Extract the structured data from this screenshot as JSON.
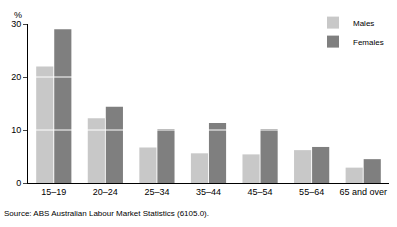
{
  "chart_data": {
    "type": "bar",
    "ylabel": "%",
    "categories": [
      "15–19",
      "20–24",
      "25–34",
      "35–44",
      "45–54",
      "55–64",
      "65 and over"
    ],
    "series": [
      {
        "name": "Males",
        "color": "#c8c8c8",
        "values": [
          22,
          12.2,
          6.7,
          5.6,
          5.4,
          6.2,
          2.9
        ]
      },
      {
        "name": "Females",
        "color": "#7f7f7f",
        "values": [
          29,
          14.4,
          10.2,
          11.3,
          10.2,
          6.8,
          4.5
        ]
      }
    ],
    "ylim": [
      0,
      30
    ],
    "yticks": [
      0,
      10,
      20,
      30
    ],
    "grid": true,
    "legend": "top-right",
    "annotations": [
      "Source: ABS Australian Labour Market Statistics (6105.0)."
    ]
  }
}
